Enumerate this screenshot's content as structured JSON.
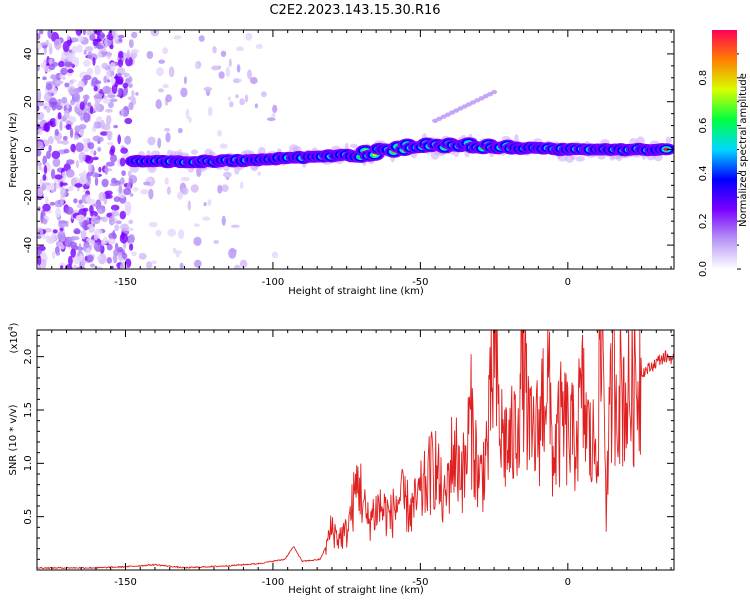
{
  "title": "C2E2.2023.143.15.30.R16",
  "chart_data": [
    {
      "type": "heatmap",
      "xlabel": "Height of straight line (km)",
      "ylabel": "Frequency (Hz)",
      "xlim": [
        -180,
        36
      ],
      "ylim": [
        -50,
        50
      ],
      "x_ticks": [
        -150,
        -100,
        -50,
        0
      ],
      "y_ticks": [
        -40,
        -20,
        0,
        20,
        40
      ],
      "colorbar": {
        "label": "Normalized spectral amplitude",
        "range": [
          0,
          1
        ],
        "ticks": [
          "0.0",
          "0.2",
          "0.4",
          "0.6",
          "0.8"
        ],
        "ticks_values": [
          0,
          0.2,
          0.4,
          0.6,
          0.8
        ],
        "colors": [
          "#ffffff",
          "#b794f6",
          "#7a00ff",
          "#0000ff",
          "#00d8ff",
          "#00ff40",
          "#d8ff00",
          "#ff8000",
          "#ff0055"
        ]
      },
      "ridge": [
        {
          "x": -147,
          "f": -5
        },
        {
          "x": -120,
          "f": -5
        },
        {
          "x": -100,
          "f": -4
        },
        {
          "x": -85,
          "f": -3
        },
        {
          "x": -70,
          "f": -2
        },
        {
          "x": -55,
          "f": 1
        },
        {
          "x": -40,
          "f": 2
        },
        {
          "x": -25,
          "f": 1
        },
        {
          "x": 0,
          "f": 0
        },
        {
          "x": 35,
          "f": 0
        }
      ],
      "harmonic": [
        {
          "x": -45,
          "f": 12
        },
        {
          "x": -25,
          "f": 24
        }
      ]
    },
    {
      "type": "line",
      "xlabel": "Height of straight line (km)",
      "ylabel": "SNR (10 * v/v)",
      "y_multiplier": "(x10",
      "y_multiplier_exp": "4",
      "y_multiplier_close": ")",
      "xlim": [
        -180,
        36
      ],
      "ylim": [
        0,
        2.25
      ],
      "x_ticks": [
        -150,
        -100,
        -50,
        0
      ],
      "y_ticks": [
        0.5,
        1.0,
        1.5,
        2.0
      ],
      "y_tick_labels": [
        "0.5",
        "1.0",
        "1.5",
        "2.0"
      ],
      "series": [
        {
          "color": "#e02020",
          "points": [
            [
              -180,
              0.02
            ],
            [
              -160,
              0.02
            ],
            [
              -150,
              0.03
            ],
            [
              -140,
              0.05
            ],
            [
              -130,
              0.02
            ],
            [
              -115,
              0.04
            ],
            [
              -105,
              0.06
            ],
            [
              -96,
              0.1
            ],
            [
              -93,
              0.22
            ],
            [
              -90,
              0.08
            ],
            [
              -84,
              0.1
            ],
            [
              -82,
              0.22
            ],
            [
              -80,
              0.4
            ],
            [
              -78,
              0.3
            ],
            [
              -75,
              0.35
            ],
            [
              -71,
              0.85
            ],
            [
              -68,
              0.45
            ],
            [
              -64,
              0.6
            ],
            [
              -60,
              0.5
            ],
            [
              -57,
              0.68
            ],
            [
              -53,
              0.55
            ],
            [
              -49,
              0.75
            ],
            [
              -45,
              1.0
            ],
            [
              -42,
              0.6
            ],
            [
              -39,
              1.1
            ],
            [
              -35,
              0.9
            ],
            [
              -33,
              1.45
            ],
            [
              -30,
              0.8
            ],
            [
              -27,
              1.2
            ],
            [
              -25,
              2.05
            ],
            [
              -23,
              1.3
            ],
            [
              -20,
              1.15
            ],
            [
              -18,
              1.25
            ],
            [
              -15,
              2.0
            ],
            [
              -13,
              1.2
            ],
            [
              -10,
              1.3
            ],
            [
              -7,
              1.9
            ],
            [
              -5,
              1.05
            ],
            [
              -2,
              1.4
            ],
            [
              2,
              1.2
            ],
            [
              5,
              1.6
            ],
            [
              8,
              1.1
            ],
            [
              10,
              1.3
            ],
            [
              12,
              2.25
            ],
            [
              13,
              0.6
            ],
            [
              15,
              1.8
            ],
            [
              18,
              1.7
            ],
            [
              20,
              1.6
            ],
            [
              22,
              1.7
            ],
            [
              25,
              1.85
            ],
            [
              28,
              1.9
            ],
            [
              31,
              1.97
            ],
            [
              33,
              2.0
            ],
            [
              36,
              1.98
            ]
          ]
        }
      ]
    }
  ]
}
